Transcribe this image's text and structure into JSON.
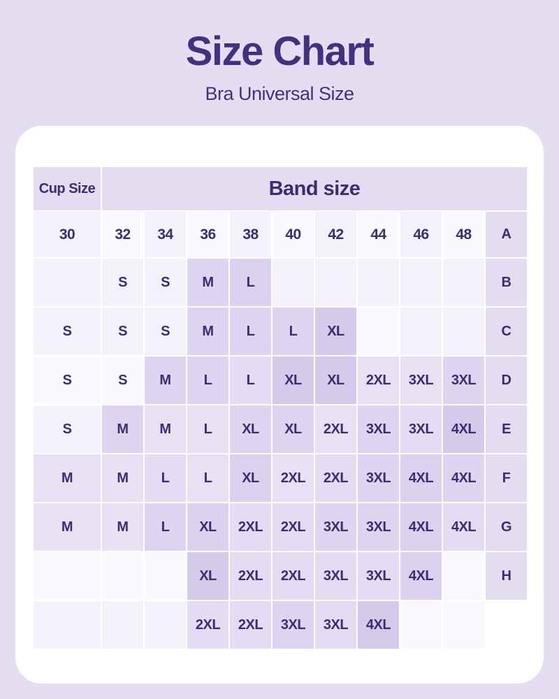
{
  "page": {
    "title": "Size Chart",
    "subtitle": "Bra Universal Size"
  },
  "chart_data": {
    "type": "table",
    "title": "Size Chart",
    "subtitle": "Bra Universal Size",
    "band_axis_label": "Band size",
    "cup_axis_label": "Cup Size",
    "band_sizes": [
      "30",
      "32",
      "34",
      "36",
      "38",
      "40",
      "42",
      "44",
      "46",
      "48"
    ],
    "rows": [
      {
        "cup": "A",
        "sizes": [
          "",
          "S",
          "S",
          "M",
          "L",
          "",
          "",
          "",
          "",
          ""
        ]
      },
      {
        "cup": "B",
        "sizes": [
          "S",
          "S",
          "S",
          "M",
          "L",
          "L",
          "XL",
          "",
          "",
          ""
        ]
      },
      {
        "cup": "C",
        "sizes": [
          "S",
          "S",
          "M",
          "L",
          "L",
          "XL",
          "XL",
          "2XL",
          "3XL",
          "3XL"
        ]
      },
      {
        "cup": "D",
        "sizes": [
          "S",
          "M",
          "M",
          "L",
          "XL",
          "XL",
          "2XL",
          "3XL",
          "3XL",
          "4XL"
        ]
      },
      {
        "cup": "E",
        "sizes": [
          "M",
          "M",
          "L",
          "L",
          "XL",
          "2XL",
          "2XL",
          "3XL",
          "4XL",
          "4XL"
        ]
      },
      {
        "cup": "F",
        "sizes": [
          "M",
          "M",
          "L",
          "XL",
          "2XL",
          "2XL",
          "3XL",
          "3XL",
          "4XL",
          "4XL"
        ]
      },
      {
        "cup": "G",
        "sizes": [
          "",
          "",
          "",
          "XL",
          "2XL",
          "2XL",
          "3XL",
          "3XL",
          "4XL",
          ""
        ]
      },
      {
        "cup": "H",
        "sizes": [
          "",
          "",
          "",
          "2XL",
          "2XL",
          "3XL",
          "3XL",
          "4XL",
          "",
          ""
        ]
      }
    ]
  },
  "style": {
    "page_bg": "#e5def3",
    "card_bg": "#ffffff",
    "title_color": "#44307e",
    "text_color": "#3c2d72",
    "label_bg": "#e4ddf2",
    "shade_palette": [
      "#faf9fd",
      "#f4f1fa",
      "#e8e1f4",
      "#e3dcf2",
      "#ded5f0",
      "#dcd1ee",
      "#d6caea"
    ],
    "header_shades": [
      1,
      0,
      1,
      0,
      1,
      0,
      1,
      0,
      1,
      0
    ],
    "cell_shades": [
      [
        1,
        1,
        1,
        4,
        5,
        1,
        1,
        1,
        1,
        1
      ],
      [
        1,
        1,
        1,
        4,
        4,
        4,
        6,
        0,
        1,
        1
      ],
      [
        0,
        0,
        4,
        4,
        3,
        6,
        6,
        2,
        2,
        4
      ],
      [
        1,
        4,
        2,
        2,
        4,
        4,
        2,
        4,
        3,
        6
      ],
      [
        2,
        2,
        3,
        2,
        5,
        2,
        3,
        4,
        5,
        4
      ],
      [
        2,
        2,
        4,
        5,
        3,
        3,
        4,
        4,
        5,
        3
      ],
      [
        0,
        0,
        0,
        6,
        3,
        3,
        3,
        3,
        5,
        0
      ],
      [
        1,
        1,
        1,
        3,
        3,
        4,
        3,
        6,
        0,
        0
      ]
    ]
  }
}
